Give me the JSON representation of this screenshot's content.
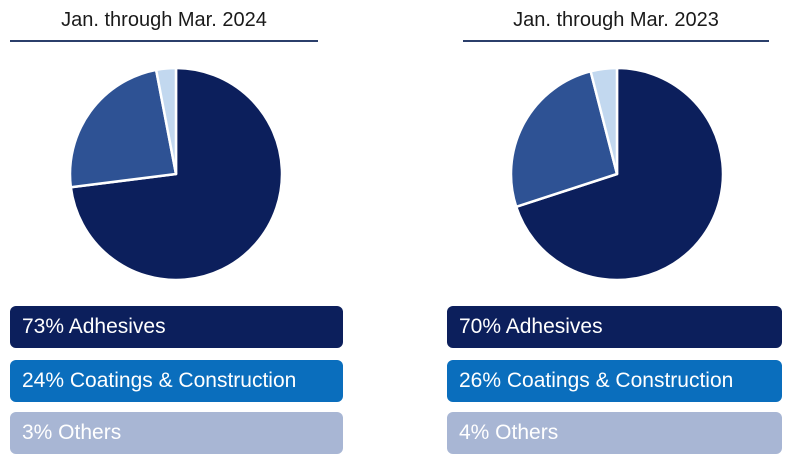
{
  "chart_data": [
    {
      "type": "pie",
      "title": "Jan. through Mar. 2024",
      "slices": [
        {
          "label": "Adhesives",
          "value": 73,
          "text": "73% Adhesives",
          "color": "#0c1f5c"
        },
        {
          "label": "Coatings & Construction",
          "value": 24,
          "text": "24% Coatings & Construction",
          "color": "#2e5294"
        },
        {
          "label": "Others",
          "value": 3,
          "text": "3% Others",
          "color": "#c2d8ef"
        }
      ],
      "legend_colors": [
        "#0c1f5c",
        "#0a6ebd",
        "#a8b6d4"
      ]
    },
    {
      "type": "pie",
      "title": "Jan. through Mar. 2023",
      "slices": [
        {
          "label": "Adhesives",
          "value": 70,
          "text": "70% Adhesives",
          "color": "#0c1f5c"
        },
        {
          "label": "Coatings & Construction",
          "value": 26,
          "text": "26% Coatings & Construction",
          "color": "#2e5294"
        },
        {
          "label": "Others",
          "value": 4,
          "text": "4% Others",
          "color": "#c2d8ef"
        }
      ],
      "legend_colors": [
        "#0c1f5c",
        "#0a6ebd",
        "#a8b6d4"
      ]
    }
  ]
}
